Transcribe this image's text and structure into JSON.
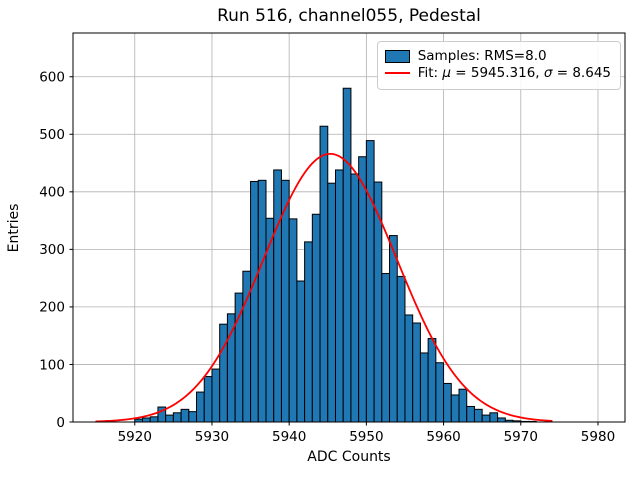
{
  "figure": {
    "title": "Run 516, channel055, Pedestal",
    "xlabel": "ADC Counts",
    "ylabel": "Entries"
  },
  "legend": {
    "samples_label": "Samples: RMS=8.0",
    "fit": {
      "prefix": "Fit: ",
      "mu_symbol": "μ",
      "mid": " = 5945.316, ",
      "sigma_symbol": "σ",
      "suffix": " = 8.645"
    }
  },
  "colors": {
    "bar_fill": "#1f77b4",
    "bar_edge": "#000000",
    "fit_line": "#ff0000",
    "grid": "#b0b0b0",
    "spine": "#000000",
    "background": "#ffffff"
  },
  "chart_data": {
    "type": "bar",
    "subtype": "histogram",
    "title": "Run 516, channel055, Pedestal",
    "xlabel": "ADC Counts",
    "ylabel": "Entries",
    "xlim": [
      5912,
      5983.5
    ],
    "ylim": [
      0,
      676
    ],
    "xticks": [
      5920,
      5930,
      5940,
      5950,
      5960,
      5970,
      5980
    ],
    "yticks": [
      0,
      100,
      200,
      300,
      400,
      500,
      600
    ],
    "grid": true,
    "legend_position": "upper right",
    "legend_entries": [
      "Samples: RMS=8.0",
      "Fit: μ = 5945.316, σ = 8.645"
    ],
    "bin_start": 5920,
    "bin_width": 1,
    "counts": [
      5,
      7,
      9,
      26,
      12,
      16,
      22,
      18,
      52,
      79,
      92,
      170,
      188,
      224,
      262,
      418,
      420,
      354,
      438,
      420,
      353,
      245,
      313,
      361,
      514,
      415,
      438,
      580,
      431,
      461,
      489,
      417,
      258,
      324,
      253,
      186,
      172,
      120,
      145,
      103,
      67,
      47,
      57,
      27,
      22,
      12,
      16,
      7,
      3,
      2,
      1,
      1
    ],
    "series": [
      {
        "name": "Samples: RMS=8.0",
        "kind": "histogram"
      },
      {
        "name": "Fit: μ = 5945.316, σ = 8.645",
        "kind": "gaussian-fit",
        "mu": 5945.316,
        "sigma": 8.645,
        "amplitude": 466,
        "x_range": [
          5915,
          5974
        ]
      }
    ]
  }
}
